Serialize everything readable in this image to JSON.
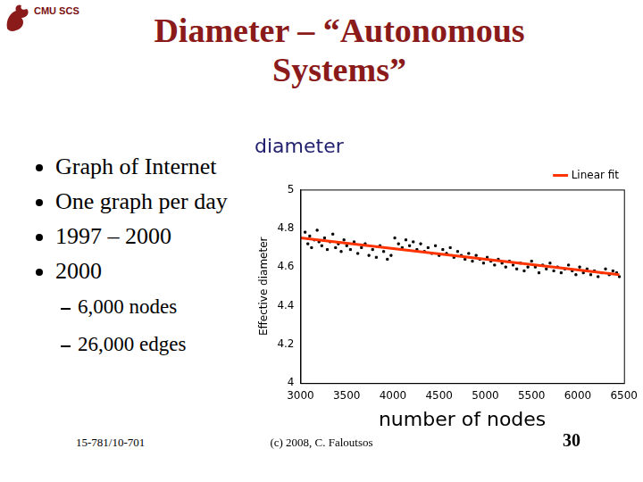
{
  "slide": {
    "header": "CMU SCS",
    "title": [
      "Diameter – “Autonomous",
      "Systems”"
    ],
    "bullets": [
      {
        "text": "Graph of Internet"
      },
      {
        "text": "One graph per day"
      },
      {
        "text": "1997 – 2000"
      },
      {
        "text": "2000",
        "sub": [
          "6,000 nodes",
          "26,000 edges"
        ]
      }
    ],
    "footer": {
      "course": "15-781/10-701",
      "copyright": "(c) 2008, C. Faloutsos",
      "page": 30
    }
  },
  "chart_data": {
    "type": "scatter",
    "title": "diameter",
    "x_label": "number of nodes",
    "y_label": "Effective diameter",
    "xlim": [
      3000,
      6500
    ],
    "xticks": [
      3000,
      3500,
      4000,
      4500,
      5000,
      5500,
      6000,
      6500
    ],
    "ylim": [
      4,
      5
    ],
    "yticks": [
      4,
      4.2,
      4.4,
      4.6,
      4.8,
      5
    ],
    "grid": false,
    "legend": "top-right",
    "series": [
      {
        "type": "scatter",
        "color": "#000000",
        "marker": "square",
        "x": [
          3050,
          3080,
          3100,
          3120,
          3150,
          3180,
          3200,
          3230,
          3260,
          3290,
          3320,
          3350,
          3380,
          3410,
          3440,
          3470,
          3500,
          3540,
          3580,
          3620,
          3660,
          3700,
          3740,
          3780,
          3820,
          3860,
          3900,
          3940,
          3980,
          4020,
          4060,
          4100,
          4140,
          4180,
          4220,
          4260,
          4300,
          4340,
          4380,
          4420,
          4460,
          4500,
          4540,
          4580,
          4620,
          4660,
          4700,
          4740,
          4780,
          4820,
          4860,
          4900,
          4940,
          4980,
          5020,
          5060,
          5100,
          5140,
          5180,
          5220,
          5260,
          5300,
          5340,
          5380,
          5420,
          5460,
          5500,
          5540,
          5580,
          5620,
          5660,
          5700,
          5740,
          5780,
          5820,
          5860,
          5900,
          5940,
          5980,
          6020,
          6060,
          6100,
          6140,
          6180,
          6220,
          6260,
          6300,
          6340,
          6380,
          6420,
          6450
        ],
        "values": [
          4.78,
          4.72,
          4.76,
          4.7,
          4.74,
          4.79,
          4.73,
          4.71,
          4.75,
          4.69,
          4.73,
          4.77,
          4.7,
          4.72,
          4.68,
          4.74,
          4.71,
          4.69,
          4.73,
          4.67,
          4.7,
          4.72,
          4.66,
          4.69,
          4.65,
          4.71,
          4.68,
          4.64,
          4.66,
          4.75,
          4.72,
          4.7,
          4.74,
          4.71,
          4.73,
          4.69,
          4.72,
          4.68,
          4.7,
          4.67,
          4.71,
          4.66,
          4.69,
          4.67,
          4.7,
          4.65,
          4.68,
          4.66,
          4.64,
          4.67,
          4.63,
          4.66,
          4.64,
          4.62,
          4.65,
          4.63,
          4.61,
          4.64,
          4.62,
          4.6,
          4.63,
          4.61,
          4.59,
          4.62,
          4.58,
          4.6,
          4.63,
          4.6,
          4.57,
          4.61,
          4.59,
          4.62,
          4.58,
          4.6,
          4.57,
          4.59,
          4.61,
          4.58,
          4.56,
          4.6,
          4.57,
          4.59,
          4.56,
          4.58,
          4.55,
          4.57,
          4.59,
          4.56,
          4.58,
          4.57,
          4.55
        ]
      },
      {
        "name": "Linear fit",
        "type": "line",
        "color": "#ff3300",
        "line_style": "solid",
        "x": [
          3000,
          6450
        ],
        "values": [
          4.75,
          4.56
        ]
      }
    ]
  }
}
